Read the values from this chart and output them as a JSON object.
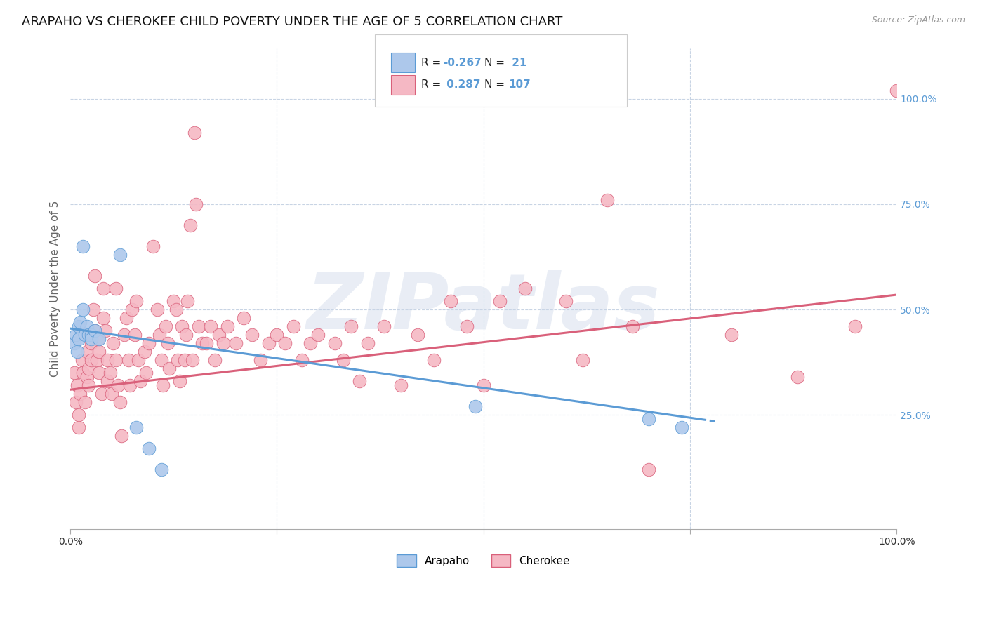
{
  "title": "ARAPAHO VS CHEROKEE CHILD POVERTY UNDER THE AGE OF 5 CORRELATION CHART",
  "source": "Source: ZipAtlas.com",
  "ylabel": "Child Poverty Under the Age of 5",
  "arapaho_color": "#adc8eb",
  "cherokee_color": "#f5b8c4",
  "arapaho_line_color": "#5b9bd5",
  "cherokee_line_color": "#d9607a",
  "background_color": "#ffffff",
  "grid_color": "#c8d4e4",
  "watermark_color": "#c8d4e8",
  "watermark_text": "ZIPatlas",
  "title_fontsize": 13,
  "axis_label_fontsize": 11,
  "tick_fontsize": 10,
  "right_tick_color": "#5b9bd5",
  "xlim": [
    0,
    1
  ],
  "ylim": [
    -0.02,
    1.12
  ],
  "arapaho_points": [
    [
      0.005,
      0.42
    ],
    [
      0.007,
      0.44
    ],
    [
      0.008,
      0.4
    ],
    [
      0.01,
      0.46
    ],
    [
      0.01,
      0.43
    ],
    [
      0.012,
      0.47
    ],
    [
      0.015,
      0.5
    ],
    [
      0.015,
      0.65
    ],
    [
      0.018,
      0.44
    ],
    [
      0.02,
      0.46
    ],
    [
      0.022,
      0.44
    ],
    [
      0.025,
      0.44
    ],
    [
      0.025,
      0.43
    ],
    [
      0.03,
      0.45
    ],
    [
      0.035,
      0.43
    ],
    [
      0.06,
      0.63
    ],
    [
      0.08,
      0.22
    ],
    [
      0.095,
      0.17
    ],
    [
      0.11,
      0.12
    ],
    [
      0.49,
      0.27
    ],
    [
      0.7,
      0.24
    ],
    [
      0.74,
      0.22
    ]
  ],
  "cherokee_points": [
    [
      0.005,
      0.35
    ],
    [
      0.007,
      0.28
    ],
    [
      0.008,
      0.32
    ],
    [
      0.01,
      0.22
    ],
    [
      0.01,
      0.25
    ],
    [
      0.012,
      0.3
    ],
    [
      0.014,
      0.38
    ],
    [
      0.015,
      0.35
    ],
    [
      0.018,
      0.28
    ],
    [
      0.02,
      0.34
    ],
    [
      0.02,
      0.4
    ],
    [
      0.022,
      0.36
    ],
    [
      0.022,
      0.32
    ],
    [
      0.025,
      0.42
    ],
    [
      0.025,
      0.38
    ],
    [
      0.028,
      0.5
    ],
    [
      0.03,
      0.58
    ],
    [
      0.03,
      0.45
    ],
    [
      0.032,
      0.38
    ],
    [
      0.034,
      0.43
    ],
    [
      0.035,
      0.4
    ],
    [
      0.035,
      0.35
    ],
    [
      0.038,
      0.3
    ],
    [
      0.04,
      0.55
    ],
    [
      0.04,
      0.48
    ],
    [
      0.042,
      0.45
    ],
    [
      0.045,
      0.38
    ],
    [
      0.045,
      0.33
    ],
    [
      0.048,
      0.35
    ],
    [
      0.05,
      0.3
    ],
    [
      0.052,
      0.42
    ],
    [
      0.055,
      0.55
    ],
    [
      0.055,
      0.38
    ],
    [
      0.058,
      0.32
    ],
    [
      0.06,
      0.28
    ],
    [
      0.062,
      0.2
    ],
    [
      0.065,
      0.44
    ],
    [
      0.068,
      0.48
    ],
    [
      0.07,
      0.38
    ],
    [
      0.072,
      0.32
    ],
    [
      0.075,
      0.5
    ],
    [
      0.078,
      0.44
    ],
    [
      0.08,
      0.52
    ],
    [
      0.082,
      0.38
    ],
    [
      0.085,
      0.33
    ],
    [
      0.09,
      0.4
    ],
    [
      0.092,
      0.35
    ],
    [
      0.095,
      0.42
    ],
    [
      0.1,
      0.65
    ],
    [
      0.105,
      0.5
    ],
    [
      0.108,
      0.44
    ],
    [
      0.11,
      0.38
    ],
    [
      0.112,
      0.32
    ],
    [
      0.115,
      0.46
    ],
    [
      0.118,
      0.42
    ],
    [
      0.12,
      0.36
    ],
    [
      0.125,
      0.52
    ],
    [
      0.128,
      0.5
    ],
    [
      0.13,
      0.38
    ],
    [
      0.132,
      0.33
    ],
    [
      0.135,
      0.46
    ],
    [
      0.138,
      0.38
    ],
    [
      0.14,
      0.44
    ],
    [
      0.142,
      0.52
    ],
    [
      0.145,
      0.7
    ],
    [
      0.148,
      0.38
    ],
    [
      0.15,
      0.92
    ],
    [
      0.152,
      0.75
    ],
    [
      0.155,
      0.46
    ],
    [
      0.16,
      0.42
    ],
    [
      0.165,
      0.42
    ],
    [
      0.17,
      0.46
    ],
    [
      0.175,
      0.38
    ],
    [
      0.18,
      0.44
    ],
    [
      0.185,
      0.42
    ],
    [
      0.19,
      0.46
    ],
    [
      0.2,
      0.42
    ],
    [
      0.21,
      0.48
    ],
    [
      0.22,
      0.44
    ],
    [
      0.23,
      0.38
    ],
    [
      0.24,
      0.42
    ],
    [
      0.25,
      0.44
    ],
    [
      0.26,
      0.42
    ],
    [
      0.27,
      0.46
    ],
    [
      0.28,
      0.38
    ],
    [
      0.29,
      0.42
    ],
    [
      0.3,
      0.44
    ],
    [
      0.32,
      0.42
    ],
    [
      0.33,
      0.38
    ],
    [
      0.34,
      0.46
    ],
    [
      0.35,
      0.33
    ],
    [
      0.36,
      0.42
    ],
    [
      0.38,
      0.46
    ],
    [
      0.4,
      0.32
    ],
    [
      0.42,
      0.44
    ],
    [
      0.44,
      0.38
    ],
    [
      0.46,
      0.52
    ],
    [
      0.48,
      0.46
    ],
    [
      0.5,
      0.32
    ],
    [
      0.52,
      0.52
    ],
    [
      0.55,
      0.55
    ],
    [
      0.6,
      0.52
    ],
    [
      0.62,
      0.38
    ],
    [
      0.65,
      0.76
    ],
    [
      0.68,
      0.46
    ],
    [
      0.7,
      0.12
    ],
    [
      0.8,
      0.44
    ],
    [
      0.88,
      0.34
    ],
    [
      0.95,
      0.46
    ],
    [
      1.0,
      1.02
    ]
  ],
  "arapaho_line": {
    "x0": 0.0,
    "y0": 0.455,
    "x1": 0.78,
    "y1": 0.235,
    "solid_end": 0.76
  },
  "cherokee_line": {
    "x0": 0.0,
    "y0": 0.31,
    "x1": 1.0,
    "y1": 0.535
  }
}
